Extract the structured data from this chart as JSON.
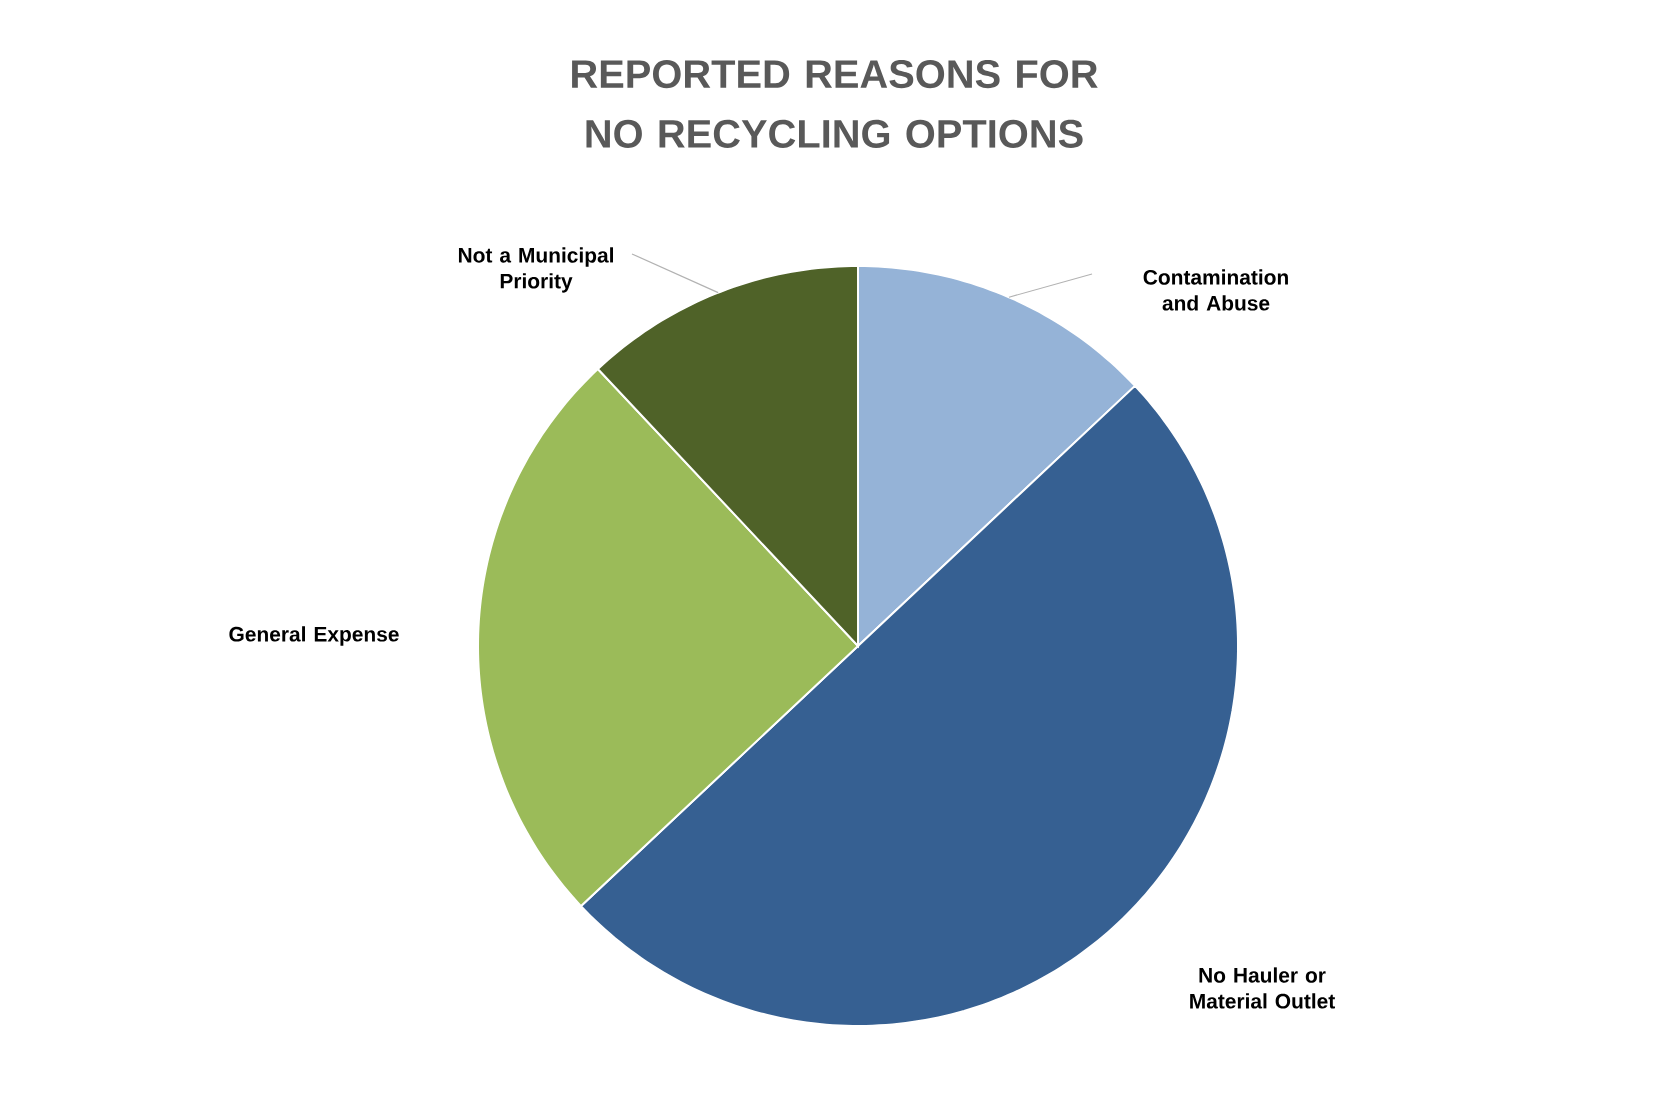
{
  "chart_data": {
    "type": "pie",
    "title": "REPORTED REASONS FOR NO RECYCLING OPTIONS",
    "categories": [
      "Contamination and Abuse",
      "No Hauler or Material Outlet",
      "General Expense",
      "Not a Municipal Priority"
    ],
    "values": [
      13,
      50,
      25,
      12
    ],
    "colors": [
      "#95b3d7",
      "#366092",
      "#9bbb59",
      "#4f6228"
    ]
  }
}
